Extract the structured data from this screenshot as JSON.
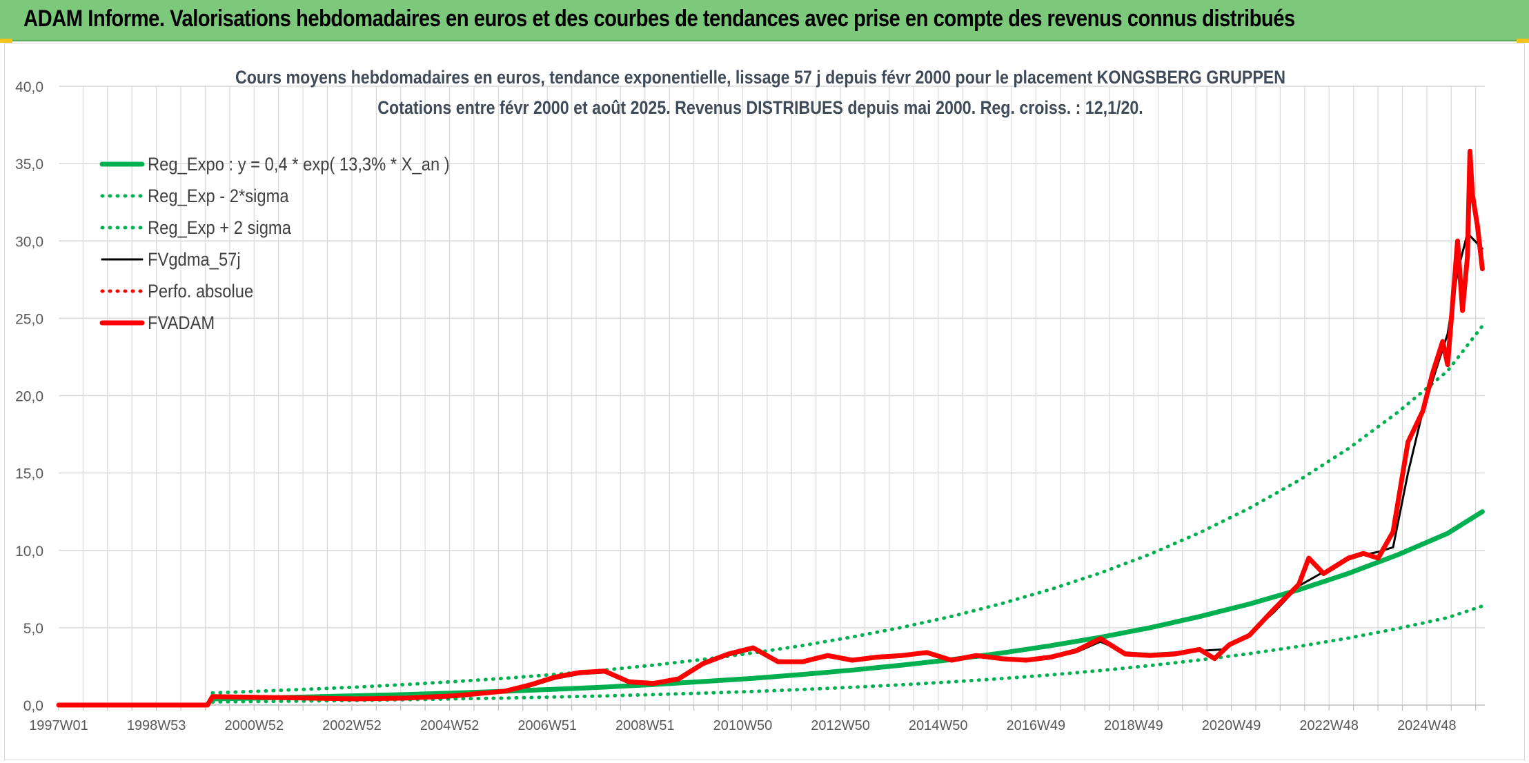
{
  "header": {
    "title": "ADAM Informe. Valorisations hebdomadaires en euros et des courbes de tendances avec prise en compte des revenus connus distribués"
  },
  "colors": {
    "header_bg": "#7dc97c",
    "reg_expo": "#00b050",
    "fvgdma": "#000000",
    "fvadam": "#ff0000",
    "grid": "#d9d9d9"
  },
  "chart_data": {
    "type": "line",
    "title": "Cours moyens hebdomadaires en euros, tendance exponentielle, lissage 57 j depuis févr 2000 pour le placement KONGSBERG GRUPPEN",
    "subtitle": "Cotations entre févr 2000 et août 2025. Revenus DISTRIBUES depuis mai 2000. Reg. croiss. : 12,1/20.",
    "xlabel": "",
    "ylabel": "",
    "ylim": [
      0,
      40
    ],
    "y_ticks": [
      "0,0",
      "5,0",
      "10,0",
      "15,0",
      "20,0",
      "25,0",
      "30,0",
      "35,0",
      "40,0"
    ],
    "x_ticks": [
      "1997W01",
      "1998W53",
      "2000W52",
      "2002W52",
      "2004W52",
      "2006W51",
      "2008W51",
      "2010W50",
      "2012W50",
      "2014W50",
      "2016W49",
      "2018W49",
      "2020W49",
      "2022W48",
      "2024W48"
    ],
    "xlim": [
      1997.0,
      2025.75
    ],
    "grid": true,
    "legend_position": "top-left",
    "series": [
      {
        "name": "Reg_Expo : y = 0,4 * exp( 13,3% *  X_an )",
        "style": "solid-thick",
        "color": "#00b050",
        "x": [
          2000.1,
          2001,
          2002,
          2003,
          2004,
          2005,
          2006,
          2007,
          2008,
          2009,
          2010,
          2011,
          2012,
          2013,
          2014,
          2015,
          2016,
          2017,
          2018,
          2019,
          2020,
          2021,
          2022,
          2023,
          2024,
          2025,
          2025.7
        ],
        "y": [
          0.4,
          0.45,
          0.52,
          0.6,
          0.68,
          0.78,
          0.89,
          1.02,
          1.16,
          1.33,
          1.52,
          1.73,
          1.98,
          2.26,
          2.58,
          2.94,
          3.36,
          3.84,
          4.38,
          5.0,
          5.72,
          6.53,
          7.45,
          8.51,
          9.72,
          11.1,
          12.5
        ]
      },
      {
        "name": "Reg_Exp - 2*sigma",
        "style": "dotted",
        "color": "#00b050",
        "x": [
          2000.1,
          2001,
          2002,
          2003,
          2004,
          2005,
          2006,
          2007,
          2008,
          2009,
          2010,
          2011,
          2012,
          2013,
          2014,
          2015,
          2016,
          2017,
          2018,
          2019,
          2020,
          2021,
          2022,
          2023,
          2024,
          2025,
          2025.7
        ],
        "y": [
          0.2,
          0.23,
          0.26,
          0.3,
          0.35,
          0.4,
          0.45,
          0.52,
          0.59,
          0.68,
          0.77,
          0.88,
          1.01,
          1.15,
          1.31,
          1.5,
          1.71,
          1.95,
          2.23,
          2.55,
          2.91,
          3.32,
          3.79,
          4.33,
          4.95,
          5.65,
          6.4
        ]
      },
      {
        "name": "Reg_Exp + 2 sigma",
        "style": "dotted",
        "color": "#00b050",
        "x": [
          2000.1,
          2001,
          2002,
          2003,
          2004,
          2005,
          2006,
          2007,
          2008,
          2009,
          2010,
          2011,
          2012,
          2013,
          2014,
          2015,
          2016,
          2017,
          2018,
          2019,
          2020,
          2021,
          2022,
          2023,
          2024,
          2025,
          2025.7
        ],
        "y": [
          0.78,
          0.89,
          1.02,
          1.16,
          1.33,
          1.52,
          1.73,
          1.98,
          2.26,
          2.58,
          2.95,
          3.37,
          3.85,
          4.4,
          5.02,
          5.73,
          6.55,
          7.48,
          8.54,
          9.75,
          11.14,
          12.72,
          14.52,
          16.58,
          18.94,
          21.6,
          24.5
        ]
      },
      {
        "name": "FVgdma_57j",
        "style": "solid",
        "color": "#000000",
        "x": [
          1997.0,
          2000.0,
          2000.1,
          2001,
          2002,
          2003,
          2004,
          2005,
          2006,
          2006.5,
          2007,
          2007.5,
          2008,
          2008.5,
          2009,
          2009.5,
          2010,
          2010.5,
          2011,
          2011.5,
          2012,
          2012.5,
          2013,
          2013.5,
          2014,
          2014.5,
          2015,
          2015.5,
          2016,
          2016.5,
          2017,
          2017.5,
          2018,
          2018.5,
          2019,
          2019.5,
          2020,
          2020.5,
          2021,
          2021.5,
          2022,
          2022.5,
          2023,
          2023.3,
          2023.6,
          2023.9,
          2024.2,
          2024.5,
          2024.8,
          2025.0,
          2025.2,
          2025.4,
          2025.55,
          2025.7
        ],
        "y": [
          0.0,
          0.0,
          0.5,
          0.5,
          0.48,
          0.45,
          0.45,
          0.6,
          0.9,
          1.2,
          1.7,
          2.0,
          2.1,
          1.6,
          1.4,
          1.6,
          2.6,
          3.2,
          3.6,
          2.9,
          2.8,
          3.1,
          2.95,
          3.0,
          3.2,
          3.3,
          3.0,
          3.1,
          3.0,
          2.95,
          3.1,
          3.4,
          4.1,
          3.4,
          3.3,
          3.4,
          3.5,
          3.6,
          4.6,
          6.0,
          7.7,
          8.6,
          9.4,
          9.7,
          9.9,
          10.2,
          15.0,
          19.0,
          22.0,
          24.0,
          28.0,
          30.5,
          30.0,
          29.5
        ]
      },
      {
        "name": "Perfo. absolue",
        "style": "dotted",
        "color": "#ff0000",
        "x": [],
        "y": []
      },
      {
        "name": "FVADAM",
        "style": "solid-thick",
        "color": "#ff0000",
        "x": [
          1997.0,
          2000.0,
          2000.1,
          2001,
          2002,
          2003,
          2004,
          2005,
          2006,
          2006.5,
          2007,
          2007.5,
          2008,
          2008.5,
          2009,
          2009.5,
          2010,
          2010.5,
          2011,
          2011.5,
          2012,
          2012.5,
          2013,
          2013.5,
          2014,
          2014.5,
          2015,
          2015.5,
          2016,
          2016.5,
          2017,
          2017.5,
          2018,
          2018.5,
          2019,
          2019.5,
          2020,
          2020.3,
          2020.6,
          2021,
          2021.5,
          2022,
          2022.2,
          2022.5,
          2023,
          2023.3,
          2023.6,
          2023.9,
          2024.2,
          2024.5,
          2024.7,
          2024.9,
          2025.0,
          2025.1,
          2025.2,
          2025.3,
          2025.4,
          2025.45,
          2025.5,
          2025.6,
          2025.7
        ],
        "y": [
          0.0,
          0.0,
          0.55,
          0.5,
          0.45,
          0.4,
          0.45,
          0.6,
          0.9,
          1.3,
          1.8,
          2.1,
          2.2,
          1.5,
          1.4,
          1.7,
          2.7,
          3.3,
          3.7,
          2.8,
          2.8,
          3.2,
          2.9,
          3.1,
          3.2,
          3.4,
          2.9,
          3.2,
          3.0,
          2.9,
          3.1,
          3.5,
          4.3,
          3.3,
          3.2,
          3.3,
          3.6,
          3.0,
          3.9,
          4.5,
          6.2,
          7.8,
          9.5,
          8.5,
          9.5,
          9.8,
          9.5,
          11.2,
          17.0,
          19.0,
          21.5,
          23.5,
          22.0,
          26.0,
          30.0,
          25.5,
          29.0,
          35.8,
          33.0,
          31.0,
          28.2
        ]
      }
    ]
  }
}
